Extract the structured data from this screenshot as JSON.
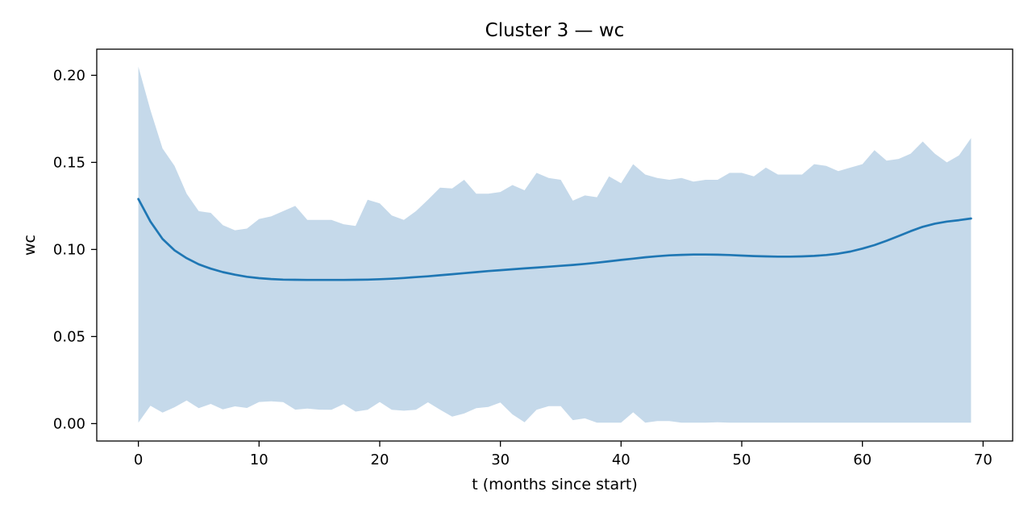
{
  "chart_data": {
    "type": "area",
    "title": "Cluster 3 — wc",
    "xlabel": "t (months since start)",
    "ylabel": "wc",
    "xlim": [
      -3.45,
      72.45
    ],
    "ylim": [
      -0.01,
      0.215
    ],
    "xticks": [
      0,
      10,
      20,
      30,
      40,
      50,
      60,
      70
    ],
    "xtick_labels": [
      "0",
      "10",
      "20",
      "30",
      "40",
      "50",
      "60",
      "70"
    ],
    "yticks": [
      0.0,
      0.05,
      0.1,
      0.15,
      0.2
    ],
    "ytick_labels": [
      "0.00",
      "0.05",
      "0.10",
      "0.15",
      "0.20"
    ],
    "grid": false,
    "colors": {
      "line": "#1f77b4",
      "band": "#c5d9ea"
    },
    "x": [
      0,
      1,
      2,
      3,
      4,
      5,
      6,
      7,
      8,
      9,
      10,
      11,
      12,
      13,
      14,
      15,
      16,
      17,
      18,
      19,
      20,
      21,
      22,
      23,
      24,
      25,
      26,
      27,
      28,
      29,
      30,
      31,
      32,
      33,
      34,
      35,
      36,
      37,
      38,
      39,
      40,
      41,
      42,
      43,
      44,
      45,
      46,
      47,
      48,
      49,
      50,
      51,
      52,
      53,
      54,
      55,
      56,
      57,
      58,
      59,
      60,
      61,
      62,
      63,
      64,
      65,
      66,
      67,
      68,
      69
    ],
    "series": [
      {
        "role": "line",
        "values": [
          0.129,
          0.116,
          0.106,
          0.0995,
          0.095,
          0.0915,
          0.089,
          0.087,
          0.0855,
          0.0843,
          0.0835,
          0.083,
          0.0827,
          0.0826,
          0.0825,
          0.0825,
          0.0825,
          0.0825,
          0.0826,
          0.0827,
          0.0829,
          0.0832,
          0.0836,
          0.0841,
          0.0846,
          0.0852,
          0.0858,
          0.0864,
          0.087,
          0.0876,
          0.0881,
          0.0886,
          0.0891,
          0.0896,
          0.0901,
          0.0906,
          0.0911,
          0.0917,
          0.0924,
          0.0932,
          0.094,
          0.0947,
          0.0955,
          0.0961,
          0.0966,
          0.0969,
          0.0971,
          0.0971,
          0.097,
          0.0968,
          0.0965,
          0.0962,
          0.096,
          0.0959,
          0.0959,
          0.096,
          0.0963,
          0.0968,
          0.0976,
          0.0988,
          0.1005,
          0.1025,
          0.105,
          0.1077,
          0.1105,
          0.113,
          0.1148,
          0.116,
          0.1168,
          0.1178
        ]
      },
      {
        "role": "band-upper",
        "values": [
          0.205,
          0.18,
          0.158,
          0.148,
          0.132,
          0.122,
          0.121,
          0.114,
          0.111,
          0.112,
          0.1175,
          0.119,
          0.122,
          0.125,
          0.117,
          0.117,
          0.117,
          0.1145,
          0.1135,
          0.1285,
          0.1265,
          0.1195,
          0.117,
          0.122,
          0.1285,
          0.1355,
          0.135,
          0.14,
          0.132,
          0.132,
          0.133,
          0.137,
          0.134,
          0.144,
          0.141,
          0.14,
          0.128,
          0.131,
          0.13,
          0.142,
          0.138,
          0.149,
          0.143,
          0.141,
          0.14,
          0.141,
          0.139,
          0.14,
          0.14,
          0.144,
          0.144,
          0.142,
          0.147,
          0.143,
          0.143,
          0.143,
          0.149,
          0.148,
          0.145,
          0.147,
          0.149,
          0.157,
          0.151,
          0.152,
          0.155,
          0.162,
          0.155,
          0.15,
          0.154,
          0.164
        ]
      },
      {
        "role": "band-lower",
        "values": [
          0.0005,
          0.0103,
          0.0063,
          0.0094,
          0.0133,
          0.0089,
          0.0113,
          0.0082,
          0.0099,
          0.009,
          0.0124,
          0.0128,
          0.0123,
          0.008,
          0.0086,
          0.008,
          0.0079,
          0.0112,
          0.0069,
          0.0079,
          0.0124,
          0.0079,
          0.0074,
          0.0079,
          0.0122,
          0.008,
          0.004,
          0.0058,
          0.0089,
          0.0096,
          0.0121,
          0.0053,
          0.0008,
          0.0079,
          0.01,
          0.01,
          0.002,
          0.003,
          0.0005,
          0.0005,
          0.0005,
          0.0065,
          0.0005,
          0.0015,
          0.0015,
          0.0005,
          0.0005,
          0.0005,
          0.0008,
          0.0005,
          0.0005,
          0.0005,
          0.0005,
          0.0005,
          0.0005,
          0.0005,
          0.0005,
          0.0005,
          0.0005,
          0.0005,
          0.0005,
          0.0005,
          0.0005,
          0.0005,
          0.0005,
          0.0005,
          0.0005,
          0.0005,
          0.0005,
          0.0005
        ]
      }
    ]
  }
}
